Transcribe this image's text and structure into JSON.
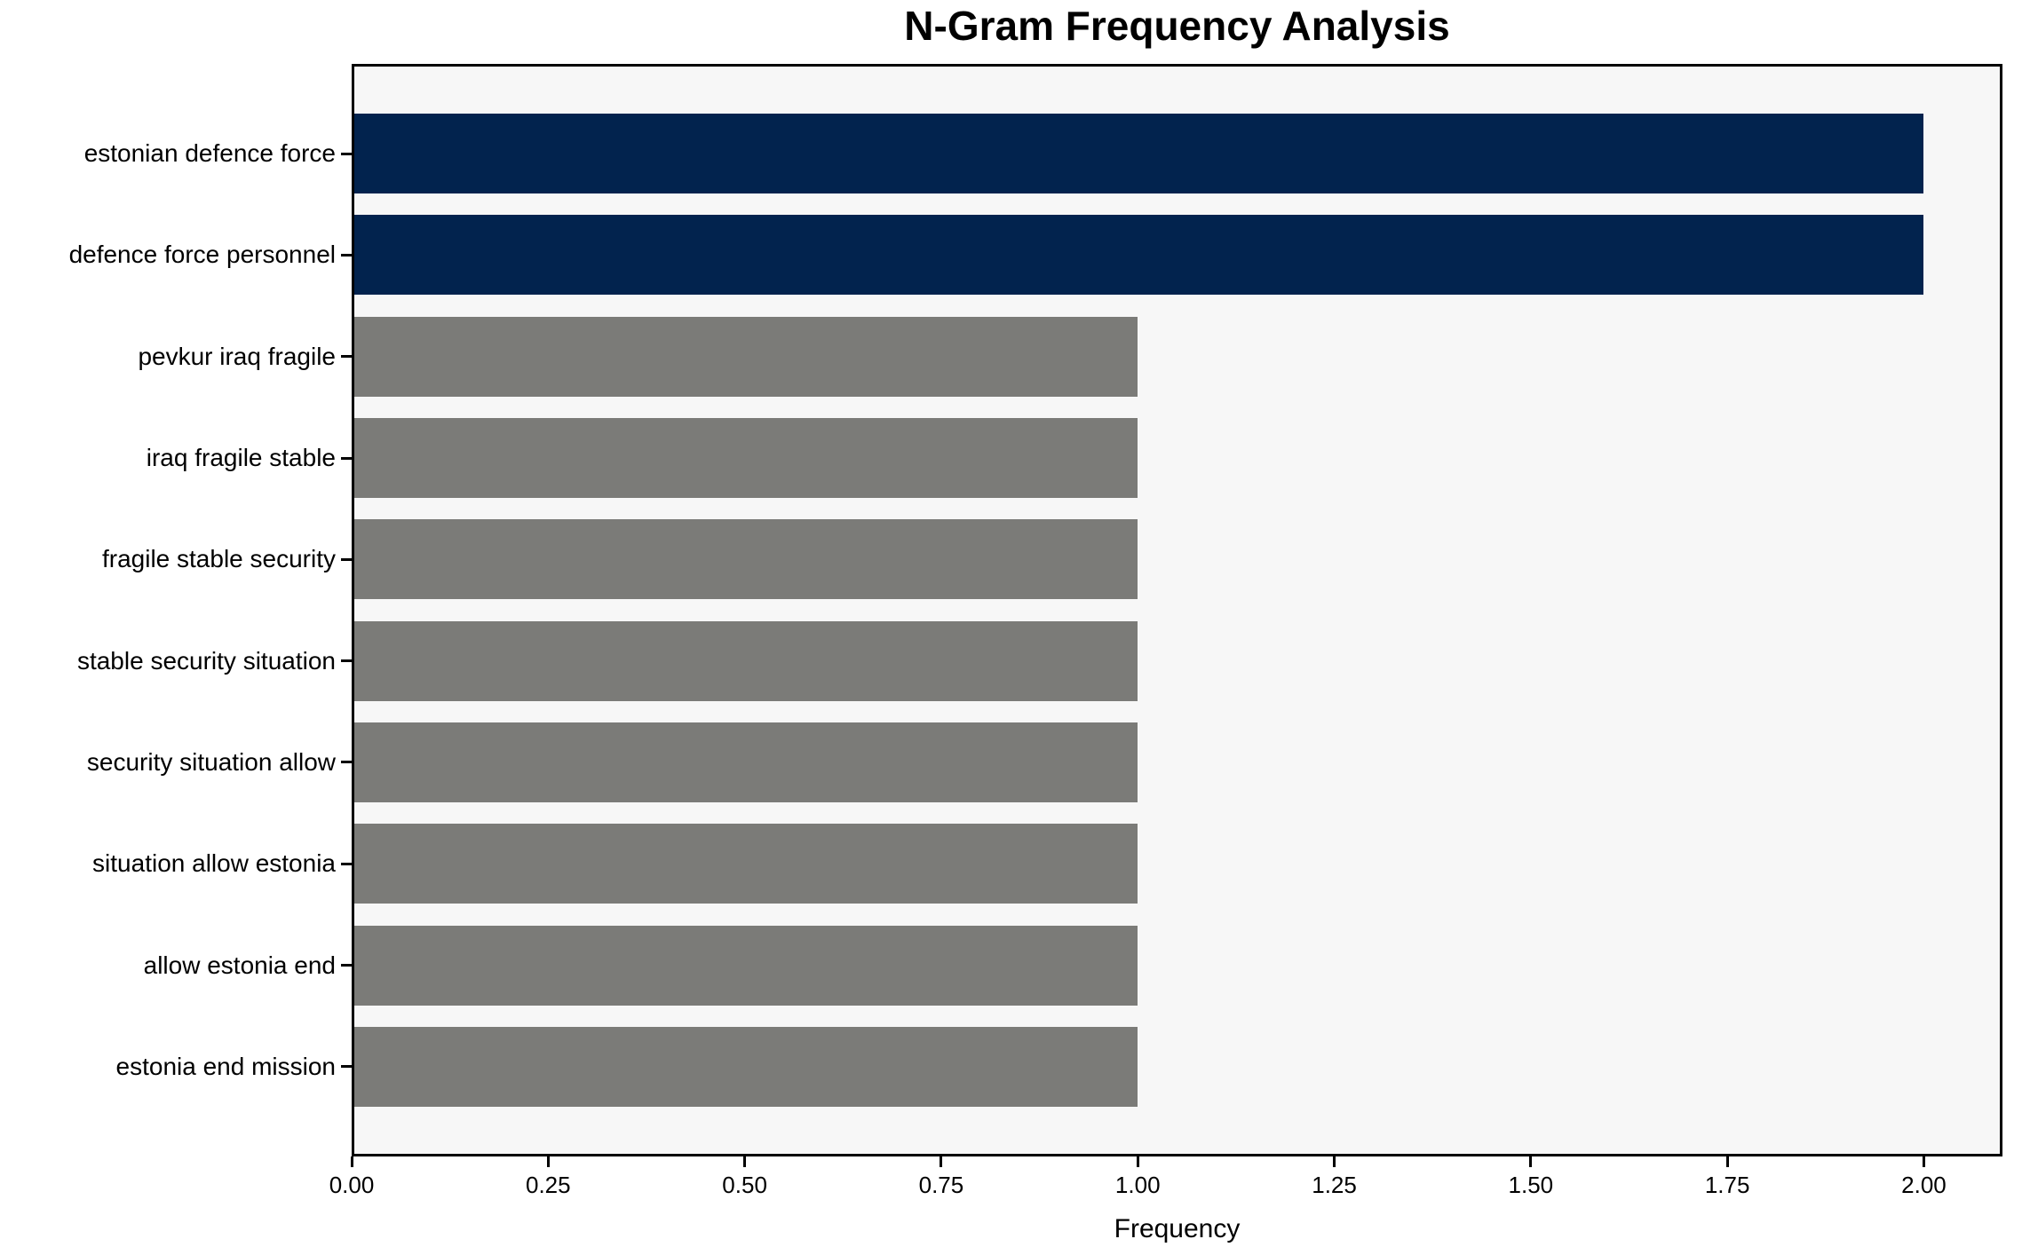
{
  "chart_data": {
    "type": "bar",
    "orientation": "horizontal",
    "title": "N-Gram Frequency Analysis",
    "xlabel": "Frequency",
    "ylabel": "",
    "categories": [
      "estonian defence force",
      "defence force personnel",
      "pevkur iraq fragile",
      "iraq fragile stable",
      "fragile stable security",
      "stable security situation",
      "security situation allow",
      "situation allow estonia",
      "allow estonia end",
      "estonia end mission"
    ],
    "values": [
      2,
      2,
      1,
      1,
      1,
      1,
      1,
      1,
      1,
      1
    ],
    "bar_colors": [
      "#02234e",
      "#02234e",
      "#7b7b78",
      "#7b7b78",
      "#7b7b78",
      "#7b7b78",
      "#7b7b78",
      "#7b7b78",
      "#7b7b78",
      "#7b7b78"
    ],
    "highlight_color": "#02234e",
    "default_bar_color": "#7b7b78",
    "xlim": [
      0,
      2.1
    ],
    "xticks": [
      0,
      0.25,
      0.5,
      0.75,
      1,
      1.25,
      1.5,
      1.75,
      2
    ],
    "xtick_labels": [
      "0.00",
      "0.25",
      "0.50",
      "0.75",
      "1.00",
      "1.25",
      "1.50",
      "1.75",
      "2.00"
    ],
    "grid": false,
    "legend": null,
    "plot_background": "#f7f7f7",
    "figure_background": "#ffffff"
  }
}
